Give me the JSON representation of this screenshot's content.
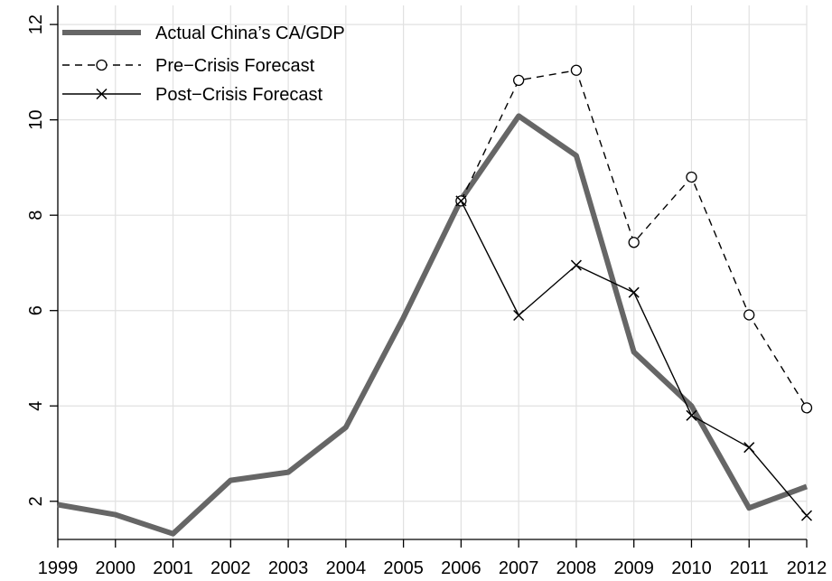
{
  "chart_data": {
    "type": "line",
    "title": "",
    "xlabel": "",
    "ylabel": "",
    "x": [
      1999,
      2000,
      2001,
      2002,
      2003,
      2004,
      2005,
      2006,
      2007,
      2008,
      2009,
      2010,
      2011,
      2012
    ],
    "x_tick_labels": [
      "1999",
      "2000",
      "2001",
      "2002",
      "2003",
      "2004",
      "2005",
      "2006",
      "2007",
      "2008",
      "2009",
      "2010",
      "2011",
      "2012"
    ],
    "xlim": [
      1999,
      2012
    ],
    "ylim": [
      1.2,
      12.4
    ],
    "y_ticks": [
      2,
      4,
      6,
      8,
      10,
      12
    ],
    "y_tick_labels": [
      "2",
      "4",
      "6",
      "8",
      "10",
      "12"
    ],
    "grid": true,
    "legend_position": "top-left",
    "series": [
      {
        "name": "Actual China’s CA/GDP",
        "style": "thick-solid",
        "color": "#666666",
        "x": [
          1999,
          2000,
          2001,
          2002,
          2003,
          2004,
          2005,
          2006,
          2007,
          2008,
          2009,
          2010,
          2011,
          2012
        ],
        "values": [
          1.93,
          1.72,
          1.32,
          2.44,
          2.61,
          3.55,
          5.85,
          8.33,
          10.08,
          9.25,
          5.13,
          4.0,
          1.86,
          2.31
        ]
      },
      {
        "name": "Pre−Crisis Forecast",
        "style": "dashed-circle",
        "color": "#000000",
        "x": [
          2006,
          2007,
          2008,
          2009,
          2010,
          2011,
          2012
        ],
        "values": [
          8.3,
          10.83,
          11.04,
          7.43,
          8.8,
          5.91,
          3.96
        ]
      },
      {
        "name": "Post−Crisis Forecast",
        "style": "solid-x",
        "color": "#000000",
        "x": [
          2006,
          2007,
          2008,
          2009,
          2010,
          2011,
          2012
        ],
        "values": [
          8.3,
          5.9,
          6.95,
          6.38,
          3.8,
          3.13,
          1.7
        ]
      }
    ]
  }
}
